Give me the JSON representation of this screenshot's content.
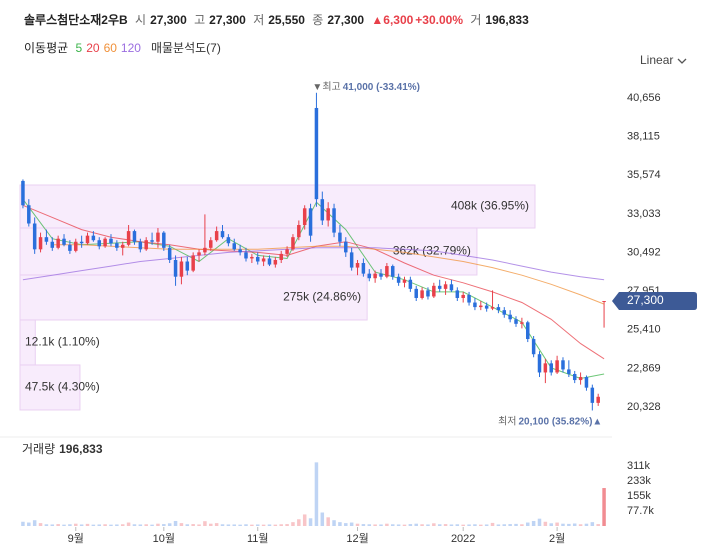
{
  "header": {
    "name": "솔루스첨단소재2우B",
    "fields": [
      {
        "label": "시",
        "value": "27,300"
      },
      {
        "label": "고",
        "value": "27,300"
      },
      {
        "label": "저",
        "value": "25,550"
      },
      {
        "label": "종",
        "value": "27,300"
      }
    ],
    "change": "▲6,300",
    "change_pct": "+30.00%",
    "volume_label": "거",
    "volume": "196,833"
  },
  "indicators": {
    "title": "이동평균",
    "profile": "매물분석도(7)"
  },
  "scale_mode": "Linear",
  "chart_data": {
    "type": "candlestick",
    "up_color": "#e8404a",
    "down_color": "#2a6fdc",
    "ylim": [
      18815,
      42169
    ],
    "yticks": [
      {
        "value": 40656,
        "label": "40,656"
      },
      {
        "value": 38115,
        "label": "38,115"
      },
      {
        "value": 35574,
        "label": "35,574"
      },
      {
        "value": 33033,
        "label": "33,033"
      },
      {
        "value": 30492,
        "label": "30,492"
      },
      {
        "value": 27951,
        "label": "27,951"
      },
      {
        "value": 25410,
        "label": "25,410"
      },
      {
        "value": 22869,
        "label": "22,869"
      },
      {
        "value": 20328,
        "label": "20,328"
      }
    ],
    "grid": false,
    "xticks": [
      {
        "value": 9,
        "label": "9월"
      },
      {
        "value": 24,
        "label": "10월"
      },
      {
        "value": 40,
        "label": "11월"
      },
      {
        "value": 57,
        "label": "12월"
      },
      {
        "value": 75,
        "label": "2022"
      },
      {
        "value": 91,
        "label": "2월"
      }
    ],
    "candles": [
      [
        35200,
        35300,
        33400,
        33600
      ],
      [
        33600,
        34000,
        32200,
        32400
      ],
      [
        32400,
        32800,
        30400,
        30700
      ],
      [
        30700,
        31800,
        30500,
        31500
      ],
      [
        31500,
        32000,
        31000,
        31200
      ],
      [
        31200,
        31500,
        30600,
        30800
      ],
      [
        30800,
        31600,
        30700,
        31400
      ],
      [
        31400,
        31700,
        30900,
        31000
      ],
      [
        31000,
        31300,
        30400,
        30600
      ],
      [
        30600,
        31400,
        30500,
        31200
      ],
      [
        31200,
        31600,
        30800,
        31100
      ],
      [
        31100,
        31800,
        31000,
        31600
      ],
      [
        31600,
        31900,
        31200,
        31300
      ],
      [
        31300,
        31500,
        30700,
        30900
      ],
      [
        30900,
        31500,
        30800,
        31400
      ],
      [
        31400,
        31700,
        30900,
        31100
      ],
      [
        31100,
        31300,
        30600,
        30800
      ],
      [
        30800,
        31200,
        30300,
        31000
      ],
      [
        31000,
        32300,
        30900,
        31900
      ],
      [
        31900,
        32000,
        31000,
        31200
      ],
      [
        31200,
        31400,
        30500,
        30700
      ],
      [
        30700,
        31500,
        30600,
        31300
      ],
      [
        31300,
        31800,
        31000,
        31200
      ],
      [
        31200,
        32100,
        30800,
        31800
      ],
      [
        31800,
        31900,
        30600,
        30800
      ],
      [
        30800,
        31000,
        29800,
        30000
      ],
      [
        30000,
        30300,
        28300,
        28900
      ],
      [
        28900,
        30200,
        28400,
        29900
      ],
      [
        29900,
        30200,
        29000,
        29300
      ],
      [
        29300,
        30500,
        29200,
        30300
      ],
      [
        30300,
        30700,
        29900,
        30500
      ],
      [
        30500,
        33000,
        30300,
        30800
      ],
      [
        30800,
        31500,
        30600,
        31300
      ],
      [
        31300,
        32200,
        31200,
        31900
      ],
      [
        31900,
        32300,
        31400,
        31500
      ],
      [
        31500,
        31700,
        30900,
        31100
      ],
      [
        31100,
        31400,
        30600,
        30700
      ],
      [
        30700,
        31000,
        30300,
        30500
      ],
      [
        30500,
        30800,
        29900,
        30100
      ],
      [
        30100,
        30400,
        29800,
        30200
      ],
      [
        30200,
        30500,
        29700,
        29900
      ],
      [
        29900,
        30300,
        29600,
        30100
      ],
      [
        30100,
        30300,
        29600,
        29700
      ],
      [
        29700,
        30200,
        29500,
        30000
      ],
      [
        30000,
        30600,
        29800,
        30400
      ],
      [
        30400,
        30900,
        30200,
        30700
      ],
      [
        30700,
        31700,
        30600,
        31500
      ],
      [
        31500,
        32600,
        31300,
        32300
      ],
      [
        32300,
        33600,
        32000,
        33400
      ],
      [
        33400,
        33700,
        31200,
        31600
      ],
      [
        40000,
        41000,
        33500,
        34000
      ],
      [
        34000,
        34500,
        32300,
        32600
      ],
      [
        32600,
        33800,
        32200,
        33400
      ],
      [
        33400,
        33700,
        31500,
        31800
      ],
      [
        31800,
        32300,
        30900,
        31200
      ],
      [
        31200,
        31500,
        30200,
        30500
      ],
      [
        30500,
        30800,
        29300,
        29500
      ],
      [
        29500,
        30000,
        29000,
        29800
      ],
      [
        29800,
        30100,
        28900,
        29100
      ],
      [
        29100,
        29400,
        28600,
        28800
      ],
      [
        28800,
        29300,
        28500,
        29100
      ],
      [
        29100,
        29400,
        28700,
        28900
      ],
      [
        28900,
        29800,
        28800,
        29600
      ],
      [
        29600,
        29700,
        28700,
        28900
      ],
      [
        28900,
        29100,
        28300,
        28500
      ],
      [
        28500,
        28900,
        28200,
        28700
      ],
      [
        28700,
        28900,
        27900,
        28100
      ],
      [
        28100,
        28300,
        27300,
        27500
      ],
      [
        27500,
        28200,
        27400,
        28000
      ],
      [
        28000,
        28200,
        27400,
        27600
      ],
      [
        27600,
        28500,
        27500,
        28300
      ],
      [
        28300,
        28700,
        27900,
        28100
      ],
      [
        28100,
        28600,
        27700,
        28400
      ],
      [
        28400,
        28700,
        27900,
        28000
      ],
      [
        28000,
        28200,
        27300,
        27500
      ],
      [
        27500,
        27900,
        27200,
        27700
      ],
      [
        27700,
        27900,
        27000,
        27200
      ],
      [
        27200,
        27500,
        26700,
        26900
      ],
      [
        26900,
        27300,
        26700,
        27000
      ],
      [
        27000,
        27200,
        26600,
        26800
      ],
      [
        26800,
        28000,
        26700,
        26900
      ],
      [
        26900,
        27100,
        26500,
        26700
      ],
      [
        26700,
        26900,
        26200,
        26400
      ],
      [
        26400,
        26700,
        25900,
        26100
      ],
      [
        26100,
        26300,
        25600,
        25800
      ],
      [
        25800,
        26200,
        25500,
        25900
      ],
      [
        25900,
        26000,
        24600,
        24800
      ],
      [
        24800,
        25000,
        23600,
        23800
      ],
      [
        23800,
        24000,
        22300,
        22600
      ],
      [
        22600,
        23500,
        21900,
        23200
      ],
      [
        23200,
        23400,
        22400,
        22600
      ],
      [
        22600,
        23700,
        22500,
        23400
      ],
      [
        23400,
        23600,
        22600,
        22800
      ],
      [
        22800,
        23400,
        22300,
        22500
      ],
      [
        22500,
        22700,
        21900,
        22100
      ],
      [
        22100,
        22600,
        21800,
        22300
      ],
      [
        22300,
        22400,
        21400,
        21600
      ],
      [
        21600,
        21800,
        20100,
        20600
      ],
      [
        20600,
        21200,
        20400,
        21000
      ],
      [
        27300,
        27300,
        25550,
        27300
      ]
    ],
    "volumes": [
      22000,
      18000,
      30000,
      15000,
      9000,
      8000,
      10000,
      7000,
      9000,
      12000,
      8000,
      11000,
      7000,
      8000,
      9000,
      7000,
      8000,
      9000,
      18000,
      9000,
      8000,
      9000,
      7000,
      12000,
      10000,
      14000,
      26000,
      15000,
      9000,
      10000,
      8000,
      25000,
      12000,
      15000,
      9000,
      8000,
      8000,
      7000,
      9000,
      7000,
      8000,
      7000,
      8000,
      7000,
      9000,
      10000,
      20000,
      35000,
      60000,
      40000,
      330000,
      70000,
      45000,
      30000,
      20000,
      15000,
      18000,
      12000,
      10000,
      9000,
      8000,
      8000,
      12000,
      9000,
      8000,
      7000,
      10000,
      12000,
      9000,
      8000,
      14000,
      9000,
      10000,
      8000,
      9000,
      7000,
      8000,
      9000,
      7000,
      8000,
      16000,
      8000,
      9000,
      10000,
      11000,
      9000,
      18000,
      26000,
      38000,
      22000,
      14000,
      18000,
      12000,
      11000,
      13000,
      9000,
      12000,
      20000,
      10000,
      196833
    ],
    "volume_pane": {
      "title": "거래량",
      "value": "196,833",
      "ylim": [
        0,
        420000
      ],
      "yticks": [
        {
          "value": 310800,
          "label": "311k"
        },
        {
          "value": 233100,
          "label": "233k"
        },
        {
          "value": 155400,
          "label": "155k"
        },
        {
          "value": 77700,
          "label": "77.7k"
        }
      ]
    },
    "profile": [
      {
        "low": 32105,
        "high": 34933,
        "volume": 408000,
        "label": "408k (36.95%)"
      },
      {
        "low": 29013,
        "high": 32105,
        "volume": 362000,
        "label": "362k (32.79%)"
      },
      {
        "low": 26053,
        "high": 29013,
        "volume": 275000,
        "label": "275k (24.86%)"
      },
      {
        "low": 23093,
        "high": 26053,
        "volume": 12100,
        "label": "12.1k (1.10%)"
      },
      {
        "low": 20133,
        "high": 23093,
        "volume": 47500,
        "label": "47.5k (4.30%)"
      }
    ],
    "ma": {
      "x": [
        0,
        5,
        10,
        15,
        20,
        25,
        30,
        35,
        40,
        45,
        50,
        55,
        60,
        65,
        70,
        75,
        80,
        85,
        90,
        95,
        99
      ],
      "series": [
        {
          "name": "5",
          "color": "#3cb44b",
          "values": [
            34000,
            31400,
            31000,
            31100,
            31200,
            30900,
            29900,
            31400,
            30300,
            30100,
            33800,
            32000,
            29200,
            28700,
            27900,
            27900,
            26900,
            25900,
            22900,
            22200,
            22500
          ]
        },
        {
          "name": "20",
          "color": "#e8404a",
          "values": [
            33600,
            32800,
            32000,
            31500,
            31200,
            31000,
            30700,
            30600,
            30500,
            30300,
            30900,
            31200,
            30700,
            29800,
            29000,
            28500,
            27900,
            27200,
            26100,
            24500,
            23500
          ]
        },
        {
          "name": "60",
          "color": "#f0913a",
          "values": [
            null,
            31000,
            31000,
            30900,
            30800,
            30700,
            30700,
            30700,
            30700,
            30800,
            30900,
            30900,
            30700,
            30500,
            30200,
            29900,
            29500,
            29000,
            28400,
            27700,
            27100
          ]
        },
        {
          "name": "120",
          "color": "#9b6ee0",
          "values": [
            28700,
            29000,
            29300,
            29600,
            29900,
            30100,
            30300,
            30500,
            30600,
            30700,
            30800,
            30800,
            30800,
            30700,
            30600,
            30300,
            30000,
            29600,
            29200,
            28900,
            28700
          ]
        }
      ]
    },
    "max_mark": {
      "index": 50,
      "value": 41000,
      "label": "▼최고",
      "text": "41,000 (-33.41%)"
    },
    "min_mark": {
      "index": 97,
      "value": 20100,
      "label": "최저",
      "text": "20,100 (35.82%)▲"
    },
    "last": {
      "value": 27300,
      "label": "27,300"
    }
  }
}
